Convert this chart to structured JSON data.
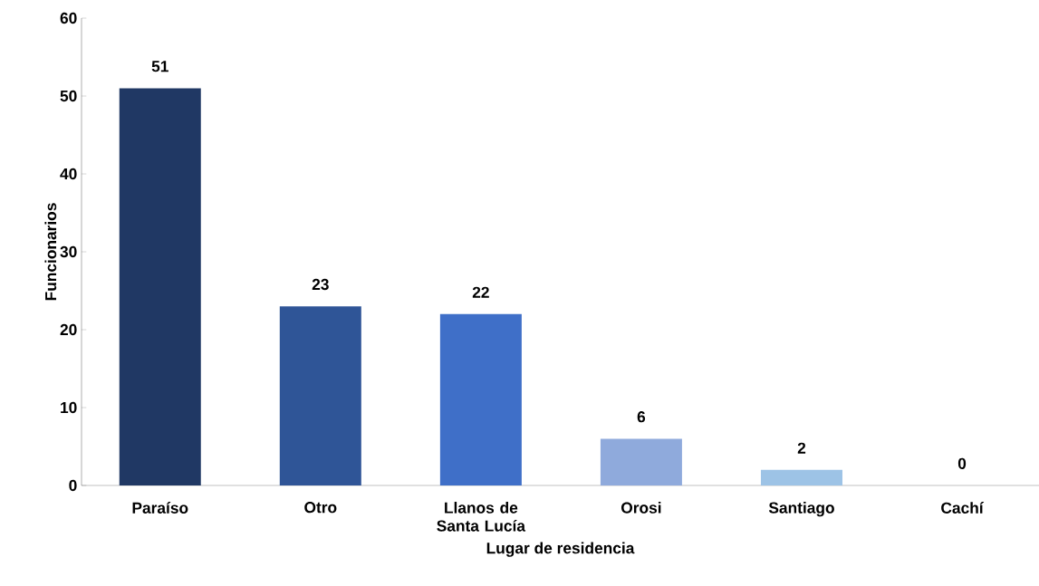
{
  "chart_data": {
    "type": "bar",
    "xlabel": "Lugar de residencia",
    "ylabel": "Funcionarios",
    "categories": [
      "Paraíso",
      "Otro",
      "Llanos de Santa Lucía",
      "Orosi",
      "Santiago",
      "Cachí"
    ],
    "values": [
      51,
      23,
      22,
      6,
      2,
      0
    ],
    "colors": [
      "#203864",
      "#2f5597",
      "#3f6fc8",
      "#8faadc",
      "#9dc3e6",
      "#9dc3e6"
    ],
    "ylim": [
      0,
      60
    ],
    "yticks": [
      0,
      10,
      20,
      30,
      40,
      50,
      60
    ],
    "data_labels": true
  }
}
